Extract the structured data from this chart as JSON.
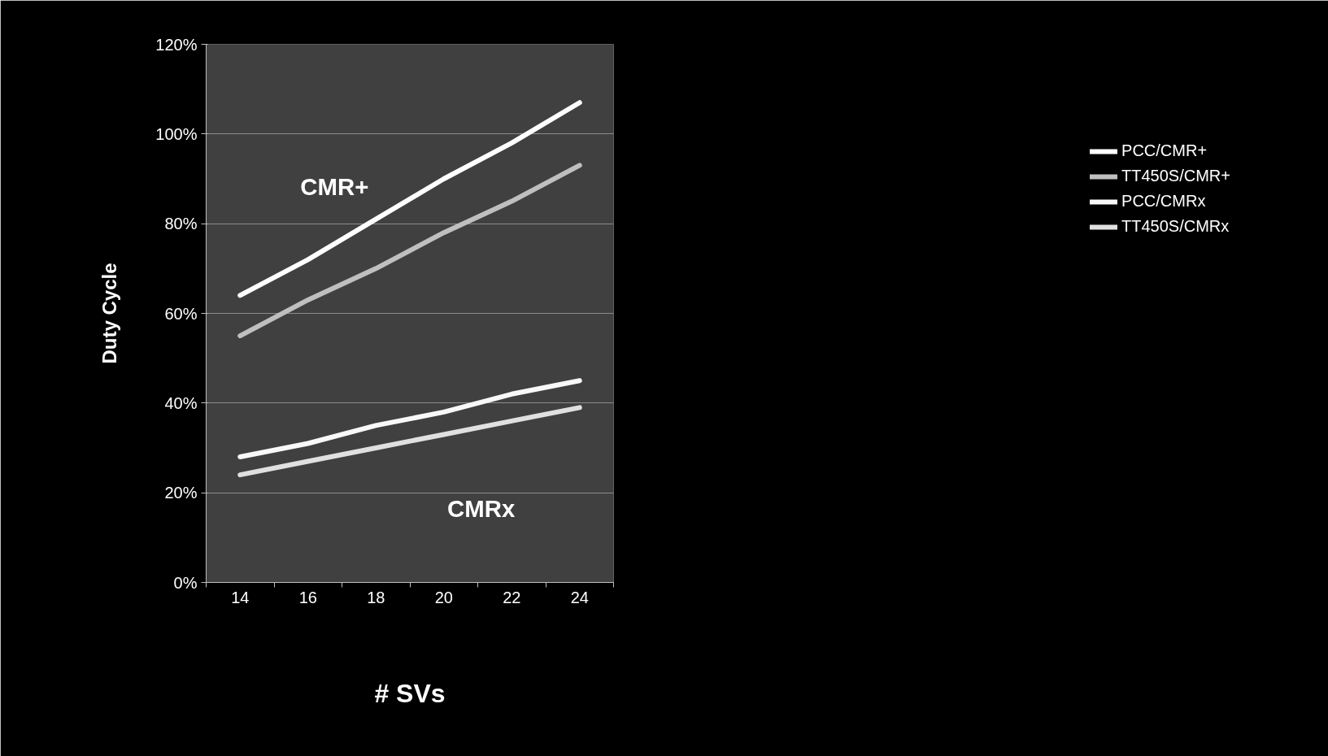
{
  "chart_data": {
    "type": "line",
    "xlabel": "# SVs",
    "ylabel": "Duty Cycle",
    "categories": [
      "14",
      "16",
      "18",
      "20",
      "22",
      "24"
    ],
    "series": [
      {
        "name": "PCC/CMR+",
        "color": "#ffffff",
        "values": [
          64,
          72,
          81,
          90,
          98,
          107
        ]
      },
      {
        "name": "TT450S/CMR+",
        "color": "#bfbfbf",
        "values": [
          55,
          63,
          70,
          78,
          85,
          93
        ]
      },
      {
        "name": "PCC/CMRx",
        "color": "#f8f8f8",
        "values": [
          28,
          31,
          35,
          38,
          42,
          45
        ]
      },
      {
        "name": "TT450S/CMRx",
        "color": "#e0e0e0",
        "values": [
          24,
          27,
          30,
          33,
          36,
          39
        ]
      }
    ],
    "ylim": [
      0,
      120
    ],
    "yticks": [
      {
        "value": 0,
        "label": "0%"
      },
      {
        "value": 20,
        "label": "20%"
      },
      {
        "value": 40,
        "label": "40%"
      },
      {
        "value": 60,
        "label": "60%"
      },
      {
        "value": 80,
        "label": "80%"
      },
      {
        "value": 100,
        "label": "100%"
      },
      {
        "value": 120,
        "label": "120%"
      }
    ],
    "grid": "y",
    "legend": "right",
    "marker": "none",
    "line_style": "solid",
    "annotations": [
      "CMR+",
      "CMRx"
    ]
  }
}
